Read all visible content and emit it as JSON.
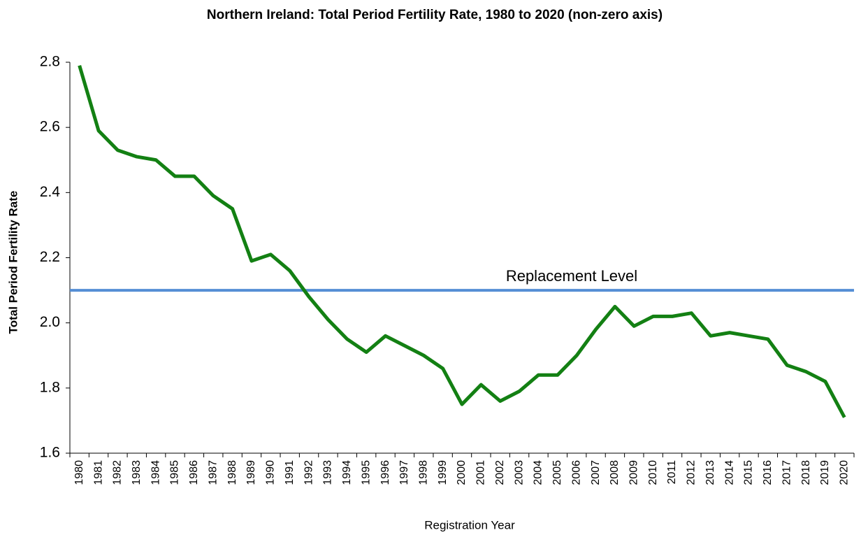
{
  "chart_data": {
    "type": "line",
    "title": "Northern Ireland: Total Period Fertility Rate, 1980 to 2020 (non-zero axis)",
    "x_label": "Registration Year",
    "y_label": "Total Period Fertility Rate",
    "categories": [
      "1980",
      "1981",
      "1982",
      "1983",
      "1984",
      "1985",
      "1986",
      "1987",
      "1988",
      "1989",
      "1990",
      "1991",
      "1992",
      "1993",
      "1994",
      "1995",
      "1996",
      "1997",
      "1998",
      "1999",
      "2000",
      "2001",
      "2002",
      "2003",
      "2004",
      "2005",
      "2006",
      "2007",
      "2008",
      "2009",
      "2010",
      "2011",
      "2012",
      "2013",
      "2014",
      "2015",
      "2016",
      "2017",
      "2018",
      "2019",
      "2020"
    ],
    "series": [
      {
        "name": "Total Period Fertility Rate",
        "color": "#138013",
        "values": [
          2.79,
          2.59,
          2.53,
          2.51,
          2.5,
          2.45,
          2.45,
          2.39,
          2.35,
          2.19,
          2.21,
          2.16,
          2.08,
          2.01,
          1.95,
          1.91,
          1.96,
          1.93,
          1.9,
          1.86,
          1.75,
          1.81,
          1.76,
          1.79,
          1.84,
          1.84,
          1.9,
          1.98,
          2.05,
          1.99,
          2.02,
          2.02,
          2.03,
          1.96,
          1.97,
          1.96,
          1.95,
          1.87,
          1.85,
          1.82,
          1.71
        ]
      }
    ],
    "reference_line": {
      "value": 2.1,
      "label": "Replacement Level",
      "color": "#558ed5"
    },
    "ylim": [
      1.6,
      2.8
    ],
    "yticks": [
      1.6,
      1.8,
      {
        "value": 2.0,
        "label": "2.0"
      },
      2.2,
      2.4,
      2.6,
      2.8
    ],
    "grid": false
  }
}
